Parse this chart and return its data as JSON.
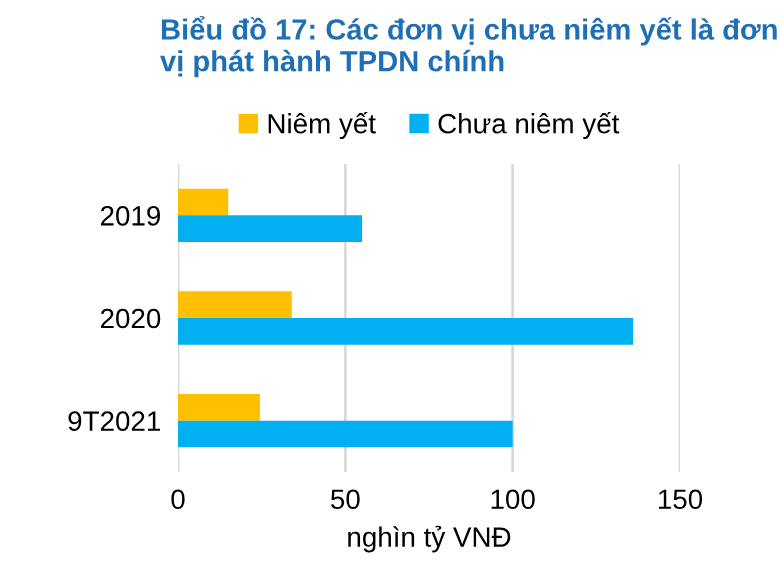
{
  "chart_data": {
    "type": "bar",
    "orientation": "horizontal",
    "title": "Biểu đồ 17: Các đơn vị chưa niêm yết là đơn vị phát hành TPDN chính",
    "xlabel": "nghìn tỷ VNĐ",
    "categories": [
      "2019",
      "2020",
      "9T2021"
    ],
    "series": [
      {
        "name": "Niêm yết",
        "color": "#ffc000",
        "values": [
          15,
          34,
          24.5
        ]
      },
      {
        "name": "Chưa niêm yết",
        "color": "#00b0f0",
        "values": [
          55,
          136,
          100
        ]
      }
    ],
    "xlim": [
      0,
      150
    ],
    "xticks": [
      0,
      50,
      100,
      150
    ],
    "grid": "x",
    "legend": "top"
  }
}
